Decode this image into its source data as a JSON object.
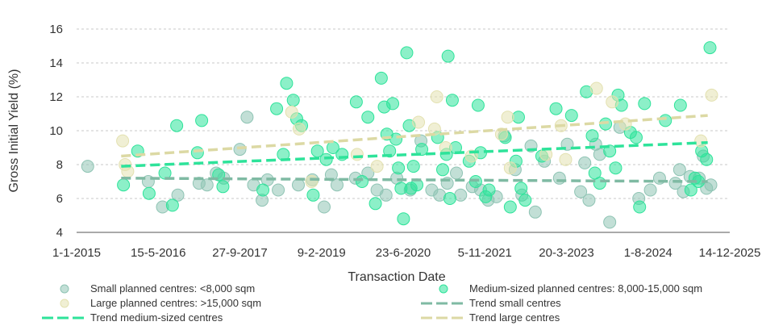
{
  "chart_data": {
    "type": "scatter",
    "title": "",
    "xlabel": "Transaction Date",
    "ylabel": "Gross Initial Yield (%)",
    "ylim": [
      4,
      16
    ],
    "yticks": [
      4,
      6,
      8,
      10,
      12,
      14,
      16
    ],
    "xlim": [
      "2015-01-01",
      "2025-12-14"
    ],
    "xticks": [
      {
        "date": "2015-01-01",
        "label": "1-1-2015"
      },
      {
        "date": "2016-05-15",
        "label": "15-5-2016"
      },
      {
        "date": "2017-09-27",
        "label": "27-9-2017"
      },
      {
        "date": "2019-02-09",
        "label": "9-2-2019"
      },
      {
        "date": "2020-06-23",
        "label": "23-6-2020"
      },
      {
        "date": "2021-11-05",
        "label": "5-11-2021"
      },
      {
        "date": "2023-03-20",
        "label": "20-3-2023"
      },
      {
        "date": "2024-08-01",
        "label": "1-8-2024"
      },
      {
        "date": "2025-12-14",
        "label": "14-12-2025"
      }
    ],
    "grid": "horizontal dashed",
    "legend_position": "bottom",
    "series": [
      {
        "name": "Small planned centres: <8,000 sqm",
        "kind": "scatter",
        "color": "#8fc4b4",
        "points": [
          [
            "2015-03-10",
            7.9
          ],
          [
            "2016-03-15",
            7.0
          ],
          [
            "2016-06-10",
            5.5
          ],
          [
            "2016-09-12",
            6.2
          ],
          [
            "2017-01-20",
            6.9
          ],
          [
            "2017-03-10",
            6.8
          ],
          [
            "2017-05-05",
            7.5
          ],
          [
            "2017-06-20",
            7.2
          ],
          [
            "2017-09-27",
            8.9
          ],
          [
            "2017-11-10",
            10.8
          ],
          [
            "2017-12-20",
            6.8
          ],
          [
            "2018-02-10",
            5.9
          ],
          [
            "2018-03-15",
            7.1
          ],
          [
            "2018-05-20",
            6.5
          ],
          [
            "2018-09-20",
            6.8
          ],
          [
            "2018-12-15",
            7.1
          ],
          [
            "2019-02-25",
            5.5
          ],
          [
            "2019-04-10",
            7.4
          ],
          [
            "2019-05-15",
            6.8
          ],
          [
            "2019-09-05",
            7.2
          ],
          [
            "2019-11-20",
            7.5
          ],
          [
            "2020-01-15",
            6.5
          ],
          [
            "2020-03-10",
            6.2
          ],
          [
            "2020-05-15",
            7.2
          ],
          [
            "2020-08-05",
            6.5
          ],
          [
            "2020-10-10",
            9.4
          ],
          [
            "2020-12-15",
            6.5
          ],
          [
            "2021-02-01",
            6.2
          ],
          [
            "2021-03-20",
            6.9
          ],
          [
            "2021-05-15",
            7.5
          ],
          [
            "2021-06-10",
            6.2
          ],
          [
            "2021-08-20",
            6.7
          ],
          [
            "2021-10-10",
            6.5
          ],
          [
            "2021-11-25",
            5.9
          ],
          [
            "2022-01-15",
            6.1
          ],
          [
            "2022-03-05",
            9.7
          ],
          [
            "2022-05-10",
            7.7
          ],
          [
            "2022-06-20",
            6.2
          ],
          [
            "2022-08-15",
            9.1
          ],
          [
            "2022-09-10",
            5.2
          ],
          [
            "2022-11-05",
            8.2
          ],
          [
            "2023-02-05",
            7.2
          ],
          [
            "2023-03-25",
            9.2
          ],
          [
            "2023-06-15",
            6.4
          ],
          [
            "2023-07-10",
            8.1
          ],
          [
            "2023-08-05",
            5.9
          ],
          [
            "2023-09-15",
            9.2
          ],
          [
            "2023-10-10",
            8.6
          ],
          [
            "2023-12-10",
            4.6
          ],
          [
            "2024-02-10",
            10.2
          ],
          [
            "2024-06-05",
            6.0
          ],
          [
            "2024-08-15",
            6.5
          ],
          [
            "2024-10-10",
            7.2
          ],
          [
            "2025-01-15",
            6.9
          ],
          [
            "2025-02-10",
            7.7
          ],
          [
            "2025-03-05",
            6.4
          ],
          [
            "2025-04-15",
            7.3
          ],
          [
            "2025-06-10",
            7.2
          ],
          [
            "2025-07-05",
            8.5
          ],
          [
            "2025-07-25",
            6.6
          ],
          [
            "2025-08-20",
            6.8
          ]
        ]
      },
      {
        "name": "Medium-sized planned centres: 8,000-15,000 sqm",
        "kind": "scatter",
        "color": "#2ee39a",
        "points": [
          [
            "2015-10-15",
            6.8
          ],
          [
            "2016-01-10",
            8.8
          ],
          [
            "2016-03-20",
            6.3
          ],
          [
            "2016-06-25",
            7.5
          ],
          [
            "2016-08-10",
            5.6
          ],
          [
            "2016-09-05",
            10.3
          ],
          [
            "2017-01-10",
            8.7
          ],
          [
            "2017-02-05",
            10.6
          ],
          [
            "2017-05-20",
            7.4
          ],
          [
            "2017-06-15",
            6.7
          ],
          [
            "2018-02-15",
            6.5
          ],
          [
            "2018-05-10",
            11.3
          ],
          [
            "2018-06-20",
            8.6
          ],
          [
            "2018-07-10",
            12.8
          ],
          [
            "2018-08-20",
            11.8
          ],
          [
            "2018-09-10",
            10.7
          ],
          [
            "2018-10-10",
            10.3
          ],
          [
            "2018-12-20",
            6.2
          ],
          [
            "2019-01-15",
            8.8
          ],
          [
            "2019-03-10",
            8.3
          ],
          [
            "2019-04-20",
            9.0
          ],
          [
            "2019-06-15",
            8.6
          ],
          [
            "2019-09-10",
            11.7
          ],
          [
            "2019-10-15",
            7.0
          ],
          [
            "2019-11-20",
            10.8
          ],
          [
            "2020-01-05",
            5.7
          ],
          [
            "2020-02-10",
            13.1
          ],
          [
            "2020-02-28",
            11.4
          ],
          [
            "2020-03-15",
            9.8
          ],
          [
            "2020-04-01",
            8.8
          ],
          [
            "2020-04-20",
            11.6
          ],
          [
            "2020-05-10",
            9.5
          ],
          [
            "2020-05-25",
            7.8
          ],
          [
            "2020-06-10",
            6.6
          ],
          [
            "2020-06-25",
            4.8
          ],
          [
            "2020-07-15",
            14.6
          ],
          [
            "2020-07-30",
            10.3
          ],
          [
            "2020-08-10",
            6.6
          ],
          [
            "2020-08-25",
            7.9
          ],
          [
            "2020-09-15",
            6.8
          ],
          [
            "2020-10-15",
            8.9
          ],
          [
            "2021-01-20",
            9.6
          ],
          [
            "2021-02-20",
            7.7
          ],
          [
            "2021-03-15",
            8.6
          ],
          [
            "2021-03-25",
            14.4
          ],
          [
            "2021-04-05",
            6.0
          ],
          [
            "2021-04-20",
            11.8
          ],
          [
            "2021-05-10",
            9.0
          ],
          [
            "2021-08-01",
            8.2
          ],
          [
            "2021-09-10",
            7.0
          ],
          [
            "2021-09-25",
            11.5
          ],
          [
            "2021-10-10",
            8.7
          ],
          [
            "2021-11-10",
            6.1
          ],
          [
            "2021-12-01",
            6.5
          ],
          [
            "2022-03-10",
            9.6
          ],
          [
            "2022-04-10",
            5.5
          ],
          [
            "2022-05-15",
            8.2
          ],
          [
            "2022-05-30",
            10.8
          ],
          [
            "2022-06-15",
            6.6
          ],
          [
            "2022-07-10",
            5.9
          ],
          [
            "2022-10-20",
            8.5
          ],
          [
            "2023-01-15",
            11.3
          ],
          [
            "2023-04-20",
            10.9
          ],
          [
            "2023-07-20",
            12.3
          ],
          [
            "2023-08-25",
            9.7
          ],
          [
            "2023-09-10",
            7.5
          ],
          [
            "2023-10-10",
            6.9
          ],
          [
            "2023-11-15",
            10.4
          ],
          [
            "2023-12-10",
            8.8
          ],
          [
            "2024-01-15",
            7.8
          ],
          [
            "2024-01-30",
            12.1
          ],
          [
            "2024-02-20",
            11.5
          ],
          [
            "2024-04-15",
            9.9
          ],
          [
            "2024-05-20",
            9.6
          ],
          [
            "2024-06-10",
            5.5
          ],
          [
            "2024-07-10",
            11.6
          ],
          [
            "2024-11-15",
            10.6
          ],
          [
            "2025-02-15",
            11.5
          ],
          [
            "2025-04-20",
            6.5
          ],
          [
            "2025-05-15",
            7.2
          ],
          [
            "2025-06-05",
            7.0
          ],
          [
            "2025-06-25",
            8.8
          ],
          [
            "2025-07-25",
            8.3
          ],
          [
            "2025-08-15",
            14.9
          ]
        ]
      },
      {
        "name": "Large planned centres: >15,000 sqm",
        "kind": "scatter",
        "color": "#e3e1b0",
        "points": [
          [
            "2015-10-10",
            9.4
          ],
          [
            "2015-10-25",
            8.0
          ],
          [
            "2015-11-10",
            7.6
          ],
          [
            "2018-08-10",
            11.1
          ],
          [
            "2018-09-25",
            10.1
          ],
          [
            "2018-12-10",
            7.0
          ],
          [
            "2019-09-15",
            8.6
          ],
          [
            "2020-01-15",
            7.9
          ],
          [
            "2020-09-25",
            10.5
          ],
          [
            "2021-01-15",
            12.0
          ],
          [
            "2021-01-01",
            10.1
          ],
          [
            "2021-03-10",
            9.0
          ],
          [
            "2021-08-15",
            8.5
          ],
          [
            "2022-02-15",
            9.8
          ],
          [
            "2022-03-25",
            10.8
          ],
          [
            "2022-04-10",
            7.8
          ],
          [
            "2022-11-15",
            8.6
          ],
          [
            "2023-02-15",
            10.3
          ],
          [
            "2023-03-15",
            8.3
          ],
          [
            "2023-09-20",
            12.5
          ],
          [
            "2023-12-25",
            11.7
          ],
          [
            "2024-03-15",
            10.4
          ],
          [
            "2025-06-20",
            9.4
          ],
          [
            "2025-08-25",
            12.1
          ]
        ]
      },
      {
        "name": "Trend small centres",
        "kind": "trend",
        "color": "#7fbaa3",
        "points": [
          [
            "2015-10-01",
            7.2
          ],
          [
            "2025-08-01",
            7.0
          ]
        ]
      },
      {
        "name": "Trend medium-sized centres",
        "kind": "trend",
        "color": "#2ee39a",
        "points": [
          [
            "2015-10-01",
            7.9
          ],
          [
            "2025-08-01",
            9.3
          ]
        ]
      },
      {
        "name": "Trend large centres",
        "kind": "trend",
        "color": "#dcd9a4",
        "points": [
          [
            "2015-10-01",
            8.5
          ],
          [
            "2025-08-01",
            10.9
          ]
        ]
      }
    ],
    "legend": [
      {
        "label": "Small planned centres: <8,000 sqm",
        "kind": "marker",
        "color": "#8fc4b4"
      },
      {
        "label": "Medium-sized planned centres: 8,000-15,000 sqm",
        "kind": "marker",
        "color": "#2ee39a"
      },
      {
        "label": "Large planned centres: >15,000 sqm",
        "kind": "marker",
        "color": "#e3e1b0"
      },
      {
        "label": "Trend small centres",
        "kind": "line",
        "color": "#7fbaa3"
      },
      {
        "label": "Trend medium-sized centres",
        "kind": "line",
        "color": "#2ee39a"
      },
      {
        "label": "Trend large centres",
        "kind": "line",
        "color": "#dcd9a4"
      }
    ]
  }
}
